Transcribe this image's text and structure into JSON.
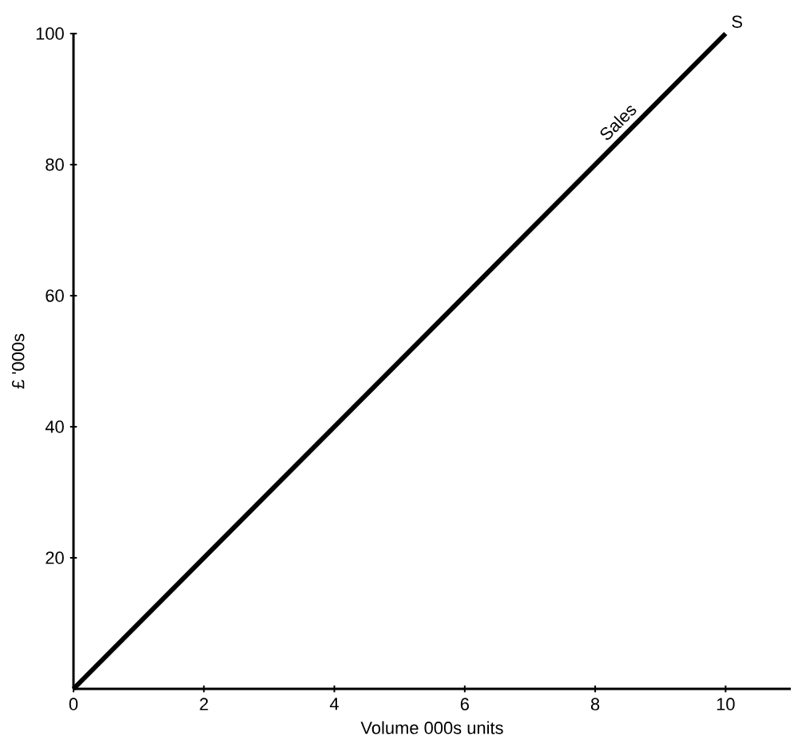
{
  "chart_data": {
    "type": "line",
    "xlabel": "Volume 000s units",
    "ylabel": "£ '000s",
    "x": [
      0,
      10
    ],
    "series": [
      {
        "name": "Sales",
        "color": "#000000",
        "values": [
          0,
          100
        ]
      }
    ],
    "xlim": [
      0,
      11
    ],
    "ylim": [
      0,
      100
    ],
    "xticks": [
      0,
      2,
      4,
      6,
      8,
      10
    ],
    "yticks": [
      20,
      40,
      60,
      80,
      100
    ],
    "grid": false,
    "legend": false,
    "marker": "none",
    "line_style": "solid",
    "annotations": [
      {
        "text": "S",
        "x": 10,
        "y": 100
      }
    ]
  }
}
